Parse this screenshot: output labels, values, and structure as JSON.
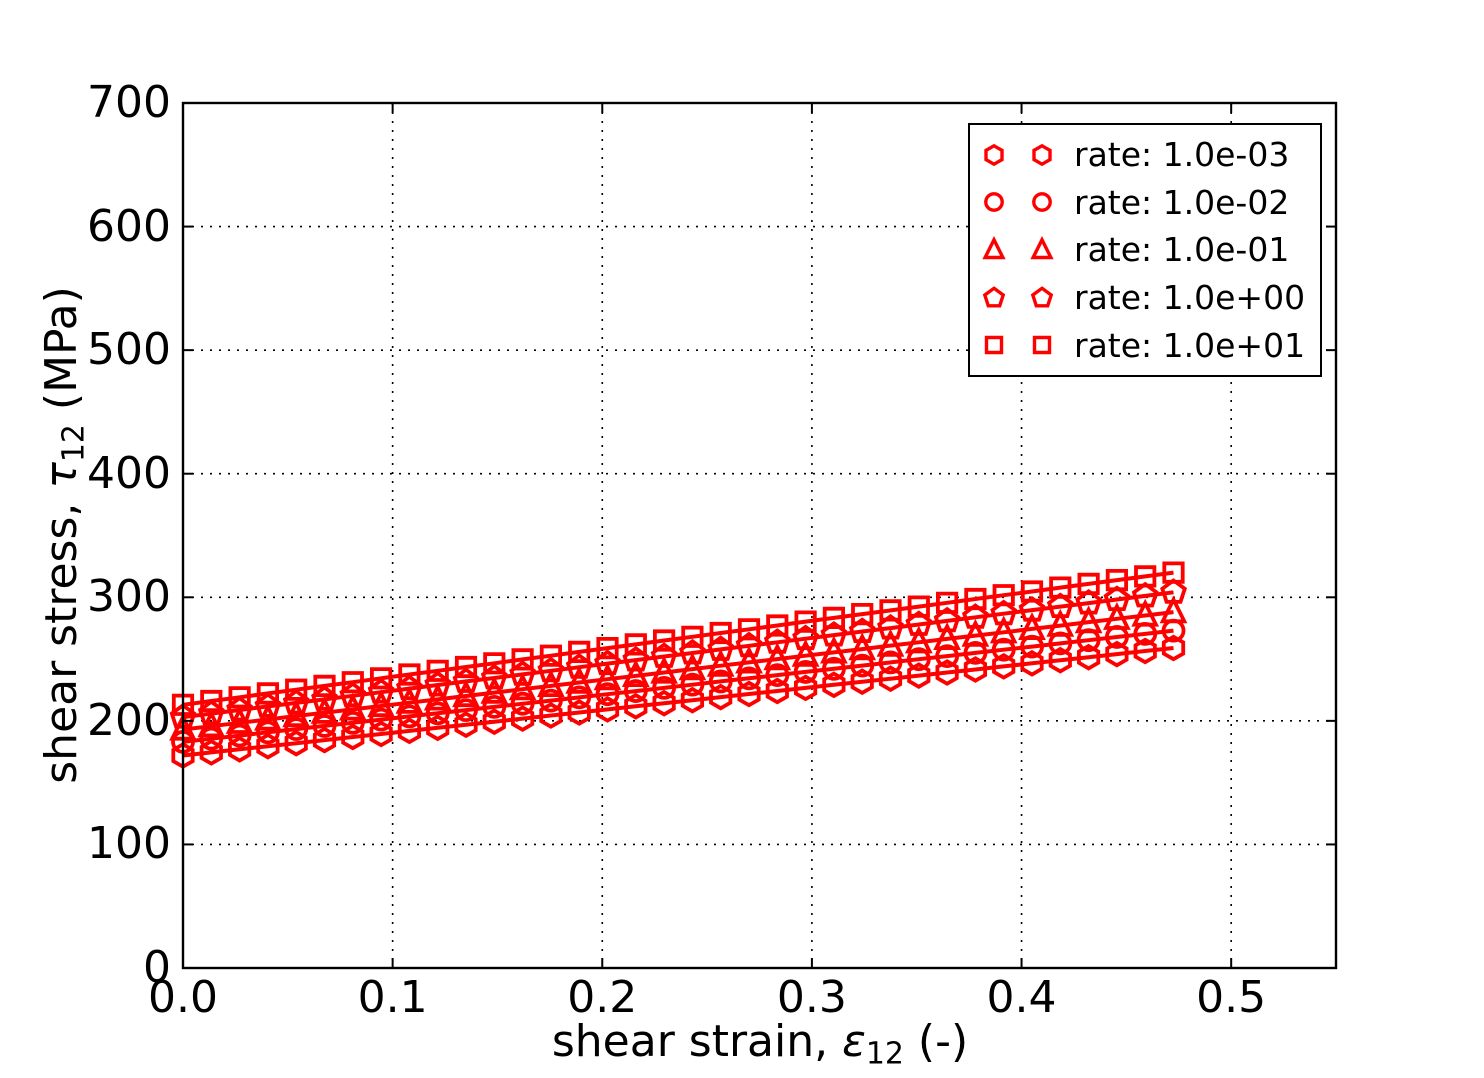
{
  "figure": {
    "background": "#ffffff",
    "axis_color": "#000000",
    "series_color": "#ff0000"
  },
  "chart_data": {
    "type": "line",
    "title": "",
    "xlabel": {
      "prefix": "shear strain, ",
      "symbol": "ε",
      "subscript": "12",
      "suffix": " (-)"
    },
    "ylabel": {
      "prefix": "shear stress, ",
      "symbol": "τ",
      "subscript": "12",
      "suffix": " (MPa)"
    },
    "xlim": [
      0,
      0.55
    ],
    "ylim": [
      0,
      700
    ],
    "xticks": [
      "0.0",
      "0.1",
      "0.2",
      "0.3",
      "0.4",
      "0.5"
    ],
    "yticks": [
      "0",
      "100",
      "200",
      "300",
      "400",
      "500",
      "600",
      "700"
    ],
    "grid": "dotted",
    "legend_position": "upper right",
    "legend_markers_per_entry": 2,
    "x": [
      0.0,
      0.0135,
      0.027,
      0.0405,
      0.054,
      0.0675,
      0.081,
      0.0945,
      0.108,
      0.1215,
      0.135,
      0.1485,
      0.162,
      0.1755,
      0.189,
      0.2025,
      0.216,
      0.2295,
      0.243,
      0.2565,
      0.27,
      0.2835,
      0.297,
      0.3105,
      0.324,
      0.3375,
      0.351,
      0.3645,
      0.378,
      0.3915,
      0.405,
      0.4185,
      0.432,
      0.4455,
      0.459,
      0.4725
    ],
    "series": [
      {
        "label": "rate: 1.0e-03",
        "marker": "hexagon",
        "color": "#ff0000",
        "values": [
          172.0,
          174.5,
          177.0,
          179.5,
          181.9,
          184.4,
          186.9,
          189.4,
          191.9,
          194.4,
          196.9,
          199.3,
          201.8,
          204.3,
          206.8,
          209.3,
          211.8,
          214.3,
          216.7,
          219.2,
          221.7,
          224.2,
          226.7,
          229.2,
          231.7,
          234.1,
          236.6,
          239.1,
          241.6,
          244.1,
          246.6,
          249.1,
          251.5,
          254.0,
          256.5,
          259.0
        ]
      },
      {
        "label": "rate: 1.0e-02",
        "marker": "circle",
        "color": "#ff0000",
        "values": [
          183.0,
          185.6,
          188.1,
          190.7,
          193.3,
          195.9,
          198.4,
          201.0,
          203.6,
          206.1,
          208.7,
          211.3,
          213.9,
          216.4,
          219.0,
          221.6,
          224.1,
          226.7,
          229.3,
          231.9,
          234.4,
          237.0,
          239.6,
          242.1,
          244.7,
          247.3,
          249.9,
          252.4,
          255.0,
          257.6,
          260.1,
          262.7,
          265.3,
          267.9,
          270.4,
          273.0
        ]
      },
      {
        "label": "rate: 1.0e-01",
        "marker": "triangle-up",
        "color": "#ff0000",
        "values": [
          193.0,
          195.7,
          198.4,
          201.1,
          203.9,
          206.6,
          209.3,
          212.0,
          214.7,
          217.4,
          220.1,
          222.9,
          225.6,
          228.3,
          231.0,
          233.7,
          236.4,
          239.1,
          241.9,
          244.6,
          247.3,
          250.0,
          252.7,
          255.4,
          258.1,
          260.9,
          263.6,
          266.3,
          269.0,
          271.7,
          274.4,
          277.1,
          279.9,
          282.6,
          285.3,
          288.0
        ]
      },
      {
        "label": "rate: 1.0e+00",
        "marker": "pentagon",
        "color": "#ff0000",
        "values": [
          203.0,
          205.9,
          208.8,
          211.7,
          214.5,
          217.4,
          220.3,
          223.2,
          226.1,
          229.0,
          231.9,
          234.7,
          237.6,
          240.5,
          243.4,
          246.3,
          249.2,
          252.1,
          254.9,
          257.8,
          260.7,
          263.6,
          266.5,
          269.4,
          272.3,
          275.1,
          278.0,
          280.9,
          283.8,
          286.7,
          289.6,
          292.5,
          295.3,
          298.2,
          301.1,
          304.0
        ]
      },
      {
        "label": "rate: 1.0e+01",
        "marker": "square",
        "color": "#ff0000",
        "values": [
          213.0,
          216.1,
          219.1,
          222.2,
          225.2,
          228.3,
          231.3,
          234.4,
          237.5,
          240.5,
          243.6,
          246.6,
          249.7,
          252.7,
          255.8,
          258.9,
          261.9,
          265.0,
          268.0,
          271.1,
          274.1,
          277.2,
          280.3,
          283.3,
          286.4,
          289.4,
          292.5,
          295.5,
          298.6,
          301.7,
          304.7,
          307.8,
          310.8,
          313.9,
          316.9,
          320.0
        ]
      }
    ]
  }
}
